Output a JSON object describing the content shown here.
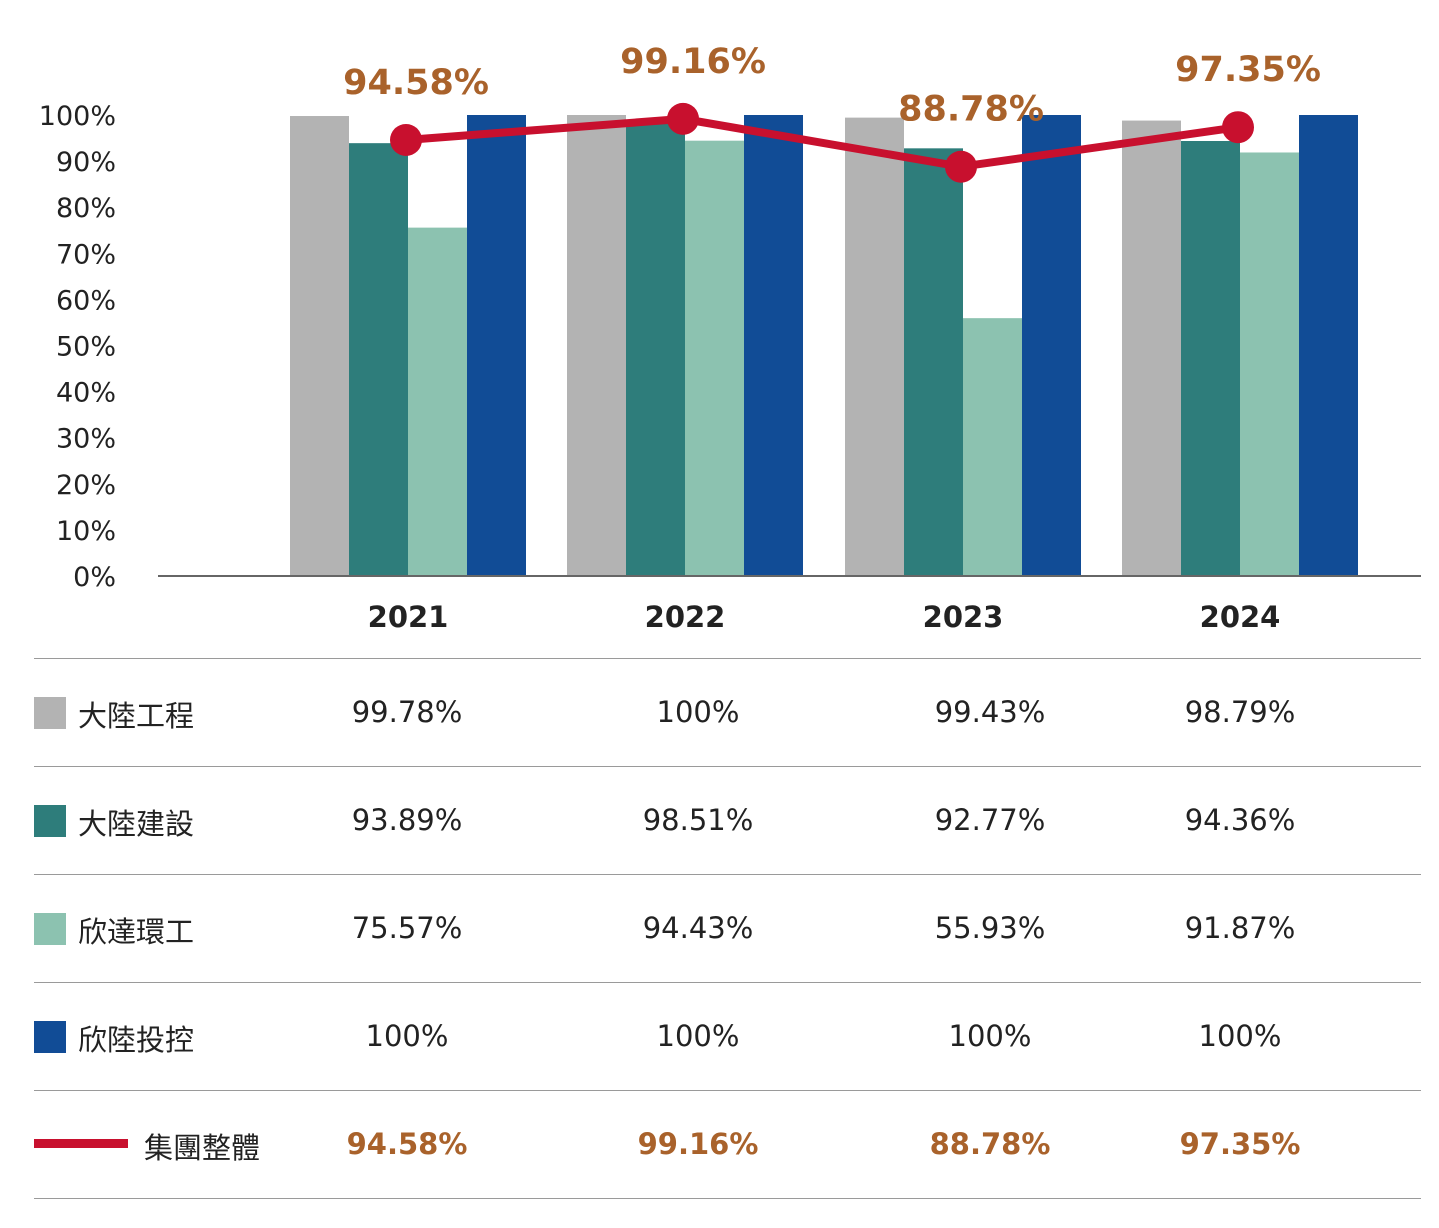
{
  "chart_data": {
    "type": "bar",
    "categories": [
      "2021",
      "2022",
      "2023",
      "2024"
    ],
    "ylim": [
      0,
      100
    ],
    "y_ticks": [
      "0%",
      "10%",
      "20%",
      "30%",
      "40%",
      "50%",
      "60%",
      "70%",
      "80%",
      "90%",
      "100%"
    ],
    "series": [
      {
        "name": "大陸工程",
        "type": "bar",
        "color": "#B3B3B3",
        "values": [
          99.78,
          100,
          99.43,
          98.79
        ],
        "labels": [
          "99.78%",
          "100%",
          "99.43%",
          "98.79%"
        ]
      },
      {
        "name": "大陸建設",
        "type": "bar",
        "color": "#2E7D7B",
        "values": [
          93.89,
          98.51,
          92.77,
          94.36
        ],
        "labels": [
          "93.89%",
          "98.51%",
          "92.77%",
          "94.36%"
        ]
      },
      {
        "name": "欣達環工",
        "type": "bar",
        "color": "#8CC2B0",
        "values": [
          75.57,
          94.43,
          55.93,
          91.87
        ],
        "labels": [
          "75.57%",
          "94.43%",
          "55.93%",
          "91.87%"
        ]
      },
      {
        "name": "欣陸投控",
        "type": "bar",
        "color": "#114C96",
        "values": [
          100,
          100,
          100,
          100
        ],
        "labels": [
          "100%",
          "100%",
          "100%",
          "100%"
        ]
      },
      {
        "name": "集團整體",
        "type": "line",
        "color": "#C8102E",
        "label_color": "#A9622B",
        "values": [
          94.58,
          99.16,
          88.78,
          97.35
        ],
        "labels": [
          "94.58%",
          "99.16%",
          "88.78%",
          "97.35%"
        ]
      }
    ],
    "legend": "data table below chart",
    "grid": false
  }
}
